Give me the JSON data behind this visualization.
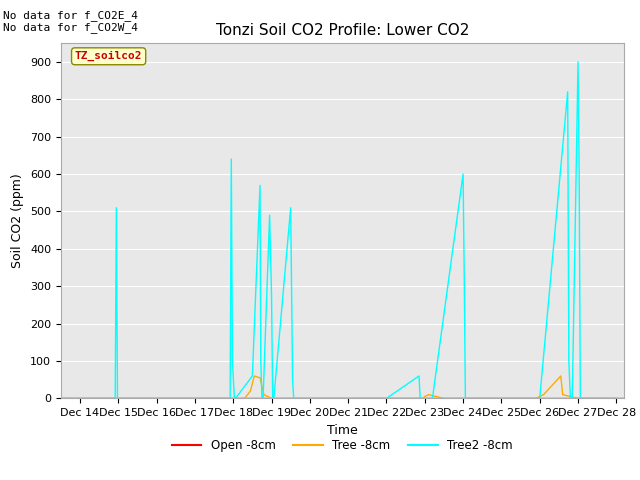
{
  "title": "Tonzi Soil CO2 Profile: Lower CO2",
  "ylabel": "Soil CO2 (ppm)",
  "xlabel": "Time",
  "annotation1": "No data for f_CO2E_4",
  "annotation2": "No data for f_CO2W_4",
  "legend_label": "TZ_soilco2",
  "ylim": [
    0,
    950
  ],
  "background_color": "#e8e8e8",
  "series": {
    "open": {
      "label": "Open -8cm",
      "color": "#ff0000",
      "x": [
        13.5,
        28.2
      ],
      "y": [
        0,
        0
      ]
    },
    "tree": {
      "label": "Tree -8cm",
      "color": "#ffaa00",
      "x": [
        13.5,
        14,
        15,
        16,
        17,
        17.95,
        18.0,
        18.3,
        18.45,
        18.55,
        18.7,
        18.8,
        19.0,
        19.05,
        19.15,
        19.2,
        19.5,
        20,
        21,
        22,
        22.95,
        23.0,
        23.1,
        23.5,
        24,
        25,
        25.9,
        26.0,
        26.1,
        26.55,
        26.6,
        27,
        27.5,
        28.0
      ],
      "y": [
        0,
        0,
        0,
        0,
        0,
        0,
        0,
        0,
        20,
        60,
        55,
        10,
        0,
        0,
        0,
        0,
        0,
        0,
        0,
        0,
        0,
        5,
        10,
        0,
        0,
        0,
        0,
        5,
        10,
        60,
        10,
        0,
        0,
        0
      ]
    },
    "tree2": {
      "label": "Tree2 -8cm",
      "color": "#00ffff",
      "x": [
        13.5,
        14,
        14.92,
        14.95,
        14.98,
        15.05,
        16,
        17,
        17.92,
        17.95,
        17.98,
        18.03,
        18.06,
        18.5,
        18.7,
        18.72,
        18.75,
        18.78,
        18.95,
        19.0,
        19.03,
        19.06,
        19.5,
        19.55,
        19.58,
        19.62,
        19.65,
        19.7,
        20.0,
        20.03,
        20.06,
        20.1,
        20.5,
        21,
        22,
        22.85,
        22.88,
        22.92,
        23.2,
        24.0,
        24.03,
        24.06,
        24.5,
        24.9,
        25.0,
        25.03,
        25.06,
        25.1,
        25.5,
        26.0,
        26.73,
        26.76,
        26.8,
        26.85,
        27.0,
        27.03,
        27.06,
        27.5,
        27.53,
        27.56,
        27.6,
        27.65,
        28.0
      ],
      "y": [
        0,
        0,
        0,
        510,
        0,
        0,
        0,
        0,
        0,
        640,
        100,
        0,
        0,
        60,
        570,
        100,
        0,
        0,
        490,
        280,
        0,
        0,
        510,
        50,
        0,
        0,
        0,
        0,
        0,
        0,
        0,
        0,
        0,
        0,
        0,
        60,
        0,
        0,
        0,
        600,
        325,
        0,
        0,
        0,
        0,
        0,
        0,
        0,
        0,
        0,
        820,
        100,
        0,
        0,
        900,
        600,
        0,
        0,
        0,
        0,
        0,
        0,
        0
      ]
    }
  },
  "xtick_labels": [
    "Dec 14",
    "Dec 15",
    "Dec 16",
    "Dec 17",
    "Dec 18",
    "Dec 19",
    "Dec 20",
    "Dec 21",
    "Dec 22",
    "Dec 23",
    "Dec 24",
    "Dec 25",
    "Dec 26",
    "Dec 27",
    "Dec 28"
  ],
  "xtick_positions": [
    14,
    15,
    16,
    17,
    18,
    19,
    20,
    21,
    22,
    23,
    24,
    25,
    26,
    27,
    28
  ],
  "xlim": [
    13.5,
    28.2
  ],
  "ytick_positions": [
    0,
    100,
    200,
    300,
    400,
    500,
    600,
    700,
    800,
    900
  ],
  "grid_color": "#ffffff",
  "title_fontsize": 11,
  "axis_label_fontsize": 9,
  "tick_fontsize": 8
}
